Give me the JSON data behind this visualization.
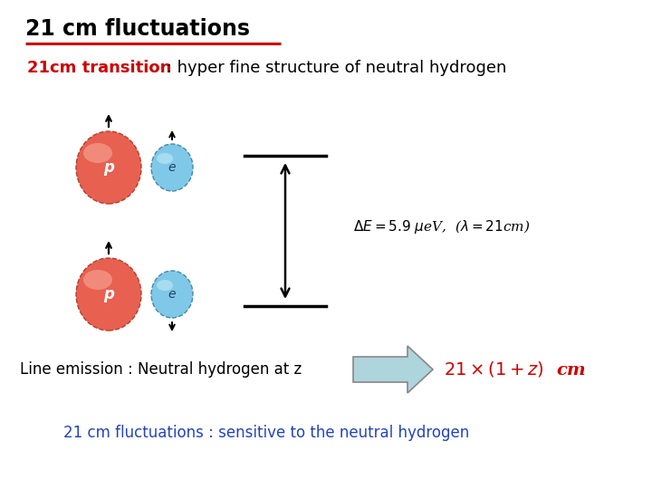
{
  "title": "21 cm fluctuations",
  "title_color": "#000000",
  "title_underline_color": "#cc0000",
  "subtitle_red": "21cm transition",
  "subtitle_colon": " : hyper fine structure of neutral hydrogen",
  "energy_eq": "$\\Delta E = 5.9\\ \\mu$eV,  ($\\lambda = 21$cm)",
  "line_emission_text": "Line emission : Neutral hydrogen at z",
  "arrow_label_red": "$21 \\times (1+z)$  cm",
  "bottom_text": "21 cm fluctuations : sensitive to the neutral hydrogen",
  "bottom_text_color": "#2244bb",
  "background_color": "#ffffff",
  "proton_face": "#e86050",
  "electron_face": "#80c8e8",
  "arrow_fill": "#aed4dc"
}
